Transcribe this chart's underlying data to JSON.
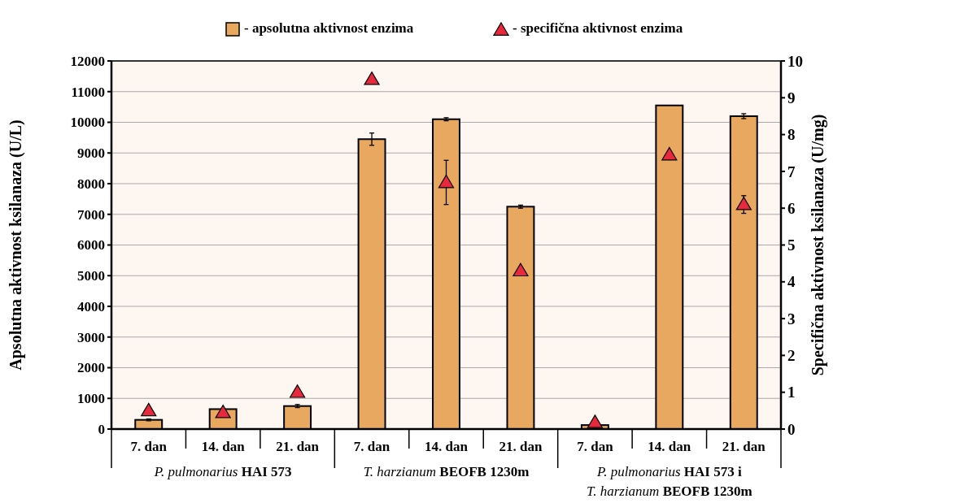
{
  "chart_data": {
    "type": "bar",
    "categories": [
      "7. dan",
      "14. dan",
      "21. dan",
      "7. dan",
      "14. dan",
      "21. dan",
      "7. dan",
      "14. dan",
      "21. dan"
    ],
    "series": [
      {
        "name": "- apsolutna aktivnost enzima",
        "color": "#e8a860",
        "values": [
          300,
          650,
          750,
          9450,
          10100,
          7250,
          130,
          10550,
          10200
        ],
        "errors": [
          30,
          null,
          50,
          200,
          50,
          50,
          null,
          null,
          80
        ]
      },
      {
        "name": "- specifična aktivnost enzima",
        "type": "scatter",
        "axis": "y2",
        "marker": "triangle",
        "color": "#e8283c",
        "values": [
          0.5,
          0.45,
          1.0,
          9.5,
          6.7,
          4.3,
          0.18,
          7.45,
          6.1
        ],
        "errors": [
          null,
          null,
          null,
          0.1,
          0.6,
          null,
          null,
          null,
          0.24
        ]
      }
    ],
    "ylabel": "Apsolutna aktivnost ksilanaza (U/L)",
    "y2label": "Specifična aktivnost ksilanaza (U/mg)",
    "ylim": [
      0,
      12000
    ],
    "yticks": [
      0,
      1000,
      2000,
      3000,
      4000,
      5000,
      6000,
      7000,
      8000,
      9000,
      10000,
      11000,
      12000
    ],
    "y2lim": [
      0,
      10
    ],
    "y2ticks": [
      0,
      1,
      2,
      3,
      4,
      5,
      6,
      7,
      8,
      9,
      10
    ],
    "annotations": [
      "P. pulmonarius HAI 573",
      "T. harzianum BEOFB 1230m",
      "P. pulmonarius HAI 573  i\nT. harzianum BEOFB 1230m"
    ],
    "grid": "y",
    "legend": "top"
  }
}
